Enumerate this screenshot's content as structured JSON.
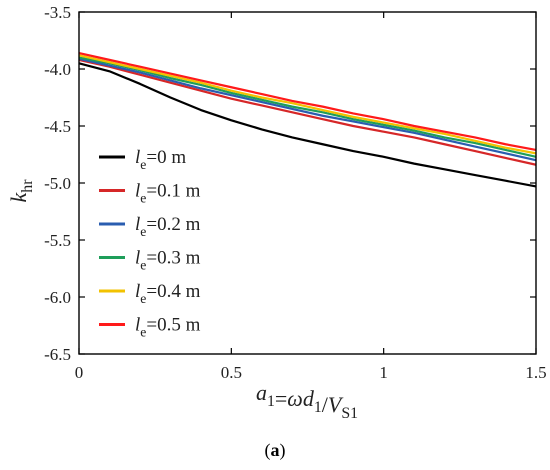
{
  "chart_data": {
    "type": "line",
    "caption_open": "(",
    "caption_letter": "a",
    "caption_close": ")",
    "xlabel": {
      "parts": [
        {
          "t": "a",
          "italic": true
        },
        {
          "t": "1",
          "sub": true
        },
        {
          "t": "=",
          "italic": false
        },
        {
          "t": "ω",
          "italic": true
        },
        {
          "t": "d",
          "italic": true
        },
        {
          "t": "1",
          "sub": true
        },
        {
          "t": "/",
          "italic": false
        },
        {
          "t": "V",
          "italic": true
        },
        {
          "t": "S1",
          "sub": true
        }
      ]
    },
    "ylabel": {
      "parts": [
        {
          "t": "k",
          "italic": true
        },
        {
          "t": "hr",
          "sub": true
        }
      ]
    },
    "xlim": [
      0,
      1.5
    ],
    "ylim": [
      -6.5,
      -3.5
    ],
    "xticks": [
      0,
      0.5,
      1,
      1.5
    ],
    "xtick_labels": [
      "0",
      "0.5",
      "1",
      "1.5"
    ],
    "yticks": [
      -3.5,
      -4.0,
      -4.5,
      -5.0,
      -5.5,
      -6.0,
      -6.5
    ],
    "ytick_labels": [
      "-3.5",
      "-4.0",
      "-4.5",
      "-5.0",
      "-5.5",
      "-6.0",
      "-6.5"
    ],
    "grid": false,
    "legend_position": "left",
    "x": [
      0,
      0.1,
      0.2,
      0.3,
      0.4,
      0.5,
      0.6,
      0.7,
      0.8,
      0.9,
      1.0,
      1.1,
      1.2,
      1.3,
      1.4,
      1.5
    ],
    "series": [
      {
        "var": "l",
        "sub": "e",
        "value": "=0 m",
        "color": "#000000",
        "values": [
          -3.95,
          -4.02,
          -4.13,
          -4.25,
          -4.36,
          -4.45,
          -4.53,
          -4.6,
          -4.66,
          -4.72,
          -4.77,
          -4.83,
          -4.88,
          -4.93,
          -4.98,
          -5.03
        ]
      },
      {
        "var": "l",
        "sub": "e",
        "value": "=0.1 m",
        "color": "#d62728",
        "values": [
          -3.92,
          -3.98,
          -4.05,
          -4.12,
          -4.19,
          -4.26,
          -4.32,
          -4.38,
          -4.44,
          -4.5,
          -4.55,
          -4.6,
          -4.66,
          -4.72,
          -4.78,
          -4.84
        ]
      },
      {
        "var": "l",
        "sub": "e",
        "value": "=0.2 m",
        "color": "#2a5db0",
        "values": [
          -3.91,
          -3.97,
          -4.03,
          -4.1,
          -4.17,
          -4.23,
          -4.29,
          -4.35,
          -4.41,
          -4.46,
          -4.51,
          -4.56,
          -4.62,
          -4.68,
          -4.74,
          -4.8
        ]
      },
      {
        "var": "l",
        "sub": "e",
        "value": "=0.3 m",
        "color": "#1e9e5a",
        "values": [
          -3.9,
          -3.95,
          -4.01,
          -4.08,
          -4.14,
          -4.21,
          -4.27,
          -4.33,
          -4.38,
          -4.44,
          -4.49,
          -4.54,
          -4.6,
          -4.65,
          -4.71,
          -4.77
        ]
      },
      {
        "var": "l",
        "sub": "e",
        "value": "=0.4 m",
        "color": "#f2c200",
        "values": [
          -3.88,
          -3.94,
          -4.0,
          -4.06,
          -4.12,
          -4.19,
          -4.25,
          -4.3,
          -4.36,
          -4.42,
          -4.47,
          -4.52,
          -4.57,
          -4.63,
          -4.69,
          -4.74
        ]
      },
      {
        "var": "l",
        "sub": "e",
        "value": "=0.5 m",
        "color": "#ff1a1a",
        "values": [
          -3.86,
          -3.92,
          -3.98,
          -4.04,
          -4.1,
          -4.16,
          -4.22,
          -4.28,
          -4.33,
          -4.39,
          -4.44,
          -4.5,
          -4.55,
          -4.6,
          -4.66,
          -4.71
        ]
      }
    ]
  }
}
